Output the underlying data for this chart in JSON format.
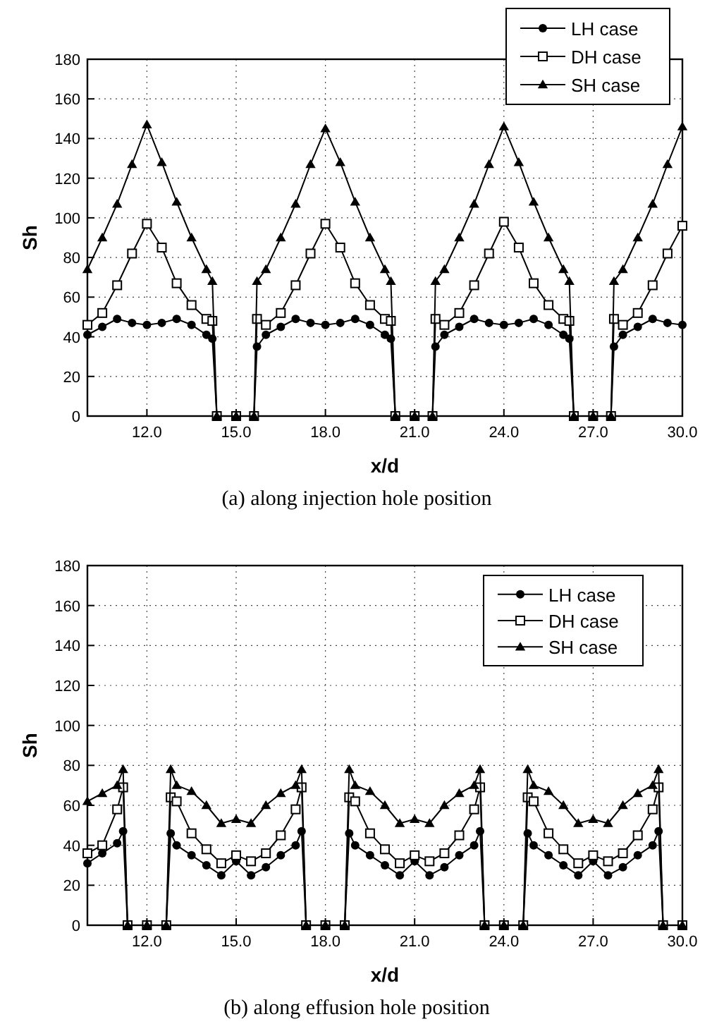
{
  "chart_data": [
    {
      "type": "line",
      "title": "(a) along injection hole position",
      "xlabel": "x/d",
      "ylabel": "Sh",
      "xlim": [
        10,
        30
      ],
      "ylim": [
        0,
        180
      ],
      "xticks": [
        {
          "value": 12,
          "label": "12.0"
        },
        {
          "value": 15,
          "label": "15.0"
        },
        {
          "value": 18,
          "label": "18.0"
        },
        {
          "value": 21,
          "label": "21.0"
        },
        {
          "value": 24,
          "label": "24.0"
        },
        {
          "value": 27,
          "label": "27.0"
        },
        {
          "value": 30,
          "label": "30.0"
        }
      ],
      "yticks": [
        0,
        20,
        40,
        60,
        80,
        100,
        120,
        140,
        160,
        180
      ],
      "grid": true,
      "legend": "top right",
      "x": [
        10,
        10.5,
        11,
        11.5,
        12,
        12.5,
        13,
        13.5,
        14,
        14.2,
        14.35,
        15,
        15.6,
        15.7,
        16,
        16.5,
        17,
        17.5,
        18,
        18.5,
        19,
        19.5,
        20,
        20.2,
        20.35,
        21,
        21.6,
        21.7,
        22,
        22.5,
        23,
        23.5,
        24,
        24.5,
        25,
        25.5,
        26,
        26.2,
        26.35,
        27,
        27.6,
        27.7,
        28,
        28.5,
        29,
        29.5,
        30
      ],
      "series": [
        {
          "name": "LH case",
          "color": "#000000",
          "marker": "circle",
          "values": [
            41,
            45,
            49,
            47,
            46,
            47,
            49,
            46,
            41,
            39,
            0,
            0,
            0,
            35,
            41,
            45,
            49,
            47,
            46,
            47,
            49,
            46,
            41,
            39,
            0,
            0,
            0,
            35,
            41,
            45,
            49,
            47,
            46,
            47,
            49,
            46,
            41,
            39,
            0,
            0,
            0,
            35,
            41,
            45,
            49,
            47,
            46
          ]
        },
        {
          "name": "DH case",
          "color": "#000000",
          "marker": "square",
          "values": [
            46,
            52,
            66,
            82,
            97,
            85,
            67,
            56,
            49,
            48,
            0,
            0,
            0,
            49,
            46,
            52,
            66,
            82,
            97,
            85,
            67,
            56,
            49,
            48,
            0,
            0,
            0,
            49,
            46,
            52,
            66,
            82,
            98,
            85,
            67,
            56,
            49,
            48,
            0,
            0,
            0,
            49,
            46,
            52,
            66,
            82,
            96
          ]
        },
        {
          "name": "SH case",
          "color": "#000000",
          "marker": "triangle",
          "values": [
            74,
            90,
            107,
            127,
            147,
            128,
            108,
            90,
            74,
            68,
            0,
            0,
            0,
            68,
            74,
            90,
            107,
            127,
            145,
            128,
            108,
            90,
            74,
            68,
            0,
            0,
            0,
            68,
            74,
            90,
            107,
            127,
            146,
            128,
            108,
            90,
            74,
            68,
            0,
            0,
            0,
            68,
            74,
            90,
            107,
            127,
            146
          ]
        }
      ]
    },
    {
      "type": "line",
      "title": "(b) along effusion hole position",
      "xlabel": "x/d",
      "ylabel": "Sh",
      "xlim": [
        10,
        30
      ],
      "ylim": [
        0,
        180
      ],
      "xticks": [
        {
          "value": 12,
          "label": "12.0"
        },
        {
          "value": 15,
          "label": "15.0"
        },
        {
          "value": 18,
          "label": "18.0"
        },
        {
          "value": 21,
          "label": "21.0"
        },
        {
          "value": 24,
          "label": "24.0"
        },
        {
          "value": 27,
          "label": "27.0"
        },
        {
          "value": 30,
          "label": "30.0"
        }
      ],
      "yticks": [
        0,
        20,
        40,
        60,
        80,
        100,
        120,
        140,
        160,
        180
      ],
      "grid": true,
      "legend": "top right",
      "x": [
        10,
        10.5,
        11,
        11.2,
        11.35,
        12,
        12.65,
        12.8,
        13,
        13.5,
        14,
        14.5,
        15,
        15.5,
        16,
        16.5,
        17,
        17.2,
        17.35,
        18,
        18.65,
        18.8,
        19,
        19.5,
        20,
        20.5,
        21,
        21.5,
        22,
        22.5,
        23,
        23.2,
        23.35,
        24,
        24.65,
        24.8,
        25,
        25.5,
        26,
        26.5,
        27,
        27.5,
        28,
        28.5,
        29,
        29.2,
        29.35,
        30
      ],
      "series": [
        {
          "name": "LH case",
          "color": "#000000",
          "marker": "circle",
          "values": [
            31,
            36,
            41,
            47,
            0,
            0,
            0,
            46,
            40,
            35,
            30,
            25,
            32,
            25,
            29,
            35,
            40,
            47,
            0,
            0,
            0,
            46,
            40,
            35,
            30,
            25,
            32,
            25,
            29,
            35,
            40,
            47,
            0,
            0,
            0,
            46,
            40,
            35,
            30,
            25,
            32,
            25,
            29,
            35,
            40,
            47,
            0,
            0
          ]
        },
        {
          "name": "DH case",
          "color": "#000000",
          "marker": "square",
          "values": [
            36,
            40,
            58,
            69,
            0,
            0,
            0,
            64,
            62,
            46,
            38,
            31,
            35,
            32,
            36,
            45,
            58,
            69,
            0,
            0,
            0,
            64,
            62,
            46,
            38,
            31,
            35,
            32,
            36,
            45,
            58,
            69,
            0,
            0,
            0,
            64,
            62,
            46,
            38,
            31,
            35,
            32,
            36,
            45,
            58,
            69,
            0,
            0
          ]
        },
        {
          "name": "SH case",
          "color": "#000000",
          "marker": "triangle",
          "values": [
            62,
            66,
            70,
            78,
            0,
            0,
            0,
            78,
            70,
            67,
            60,
            51,
            53,
            51,
            60,
            66,
            70,
            78,
            0,
            0,
            0,
            78,
            70,
            67,
            60,
            51,
            53,
            51,
            60,
            66,
            70,
            78,
            0,
            0,
            0,
            78,
            70,
            67,
            60,
            51,
            53,
            51,
            60,
            66,
            70,
            78,
            0,
            0
          ]
        }
      ]
    }
  ]
}
